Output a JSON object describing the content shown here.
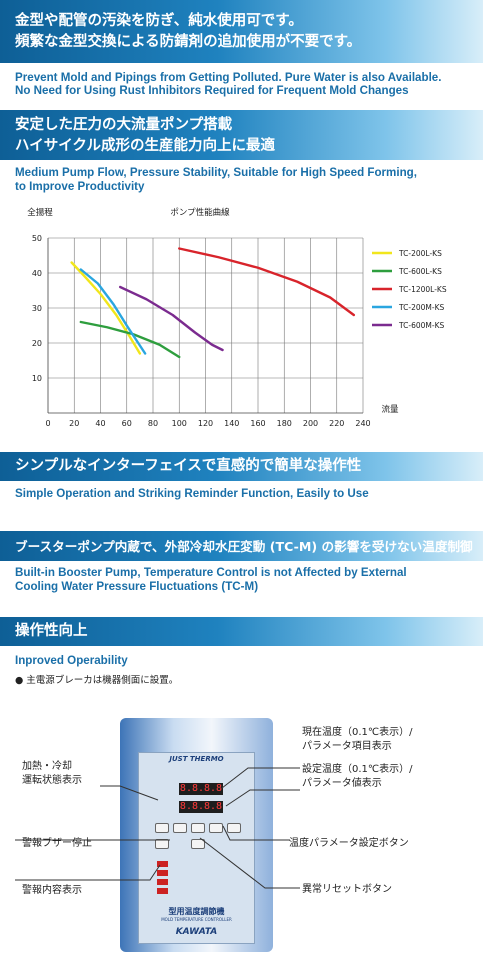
{
  "section1": {
    "jp_line1": "金型や配管の汚染を防ぎ、純水使用可です。",
    "jp_line2": "頻繁な金型交換による防錆剤の追加使用が不要です。",
    "en_line1": "Prevent Mold and Pipings from Getting Polluted. Pure Water is also Available.",
    "en_line2": "No Need for Using Rust Inhibitors Required for Frequent Mold Changes"
  },
  "section2": {
    "jp_line1": "安定した圧力の大流量ポンプ搭載",
    "jp_line2": "ハイサイクル成形の生産能力向上に最適",
    "en_line1": "Medium Pump Flow, Pressure Stability, Suitable for High Speed Forming,",
    "en_line2": "to Improve Productivity"
  },
  "chart_data": {
    "type": "line",
    "ylabel": "全揚程",
    "title": "ポンプ性能曲線",
    "xlabel": "流量",
    "xlim": [
      0,
      240
    ],
    "ylim": [
      0,
      50
    ],
    "xticks": [
      "0",
      "20",
      "40",
      "60",
      "80",
      "100",
      "120",
      "140",
      "160",
      "180",
      "200",
      "220",
      "240"
    ],
    "yticks": [
      "10",
      "20",
      "30",
      "40",
      "50"
    ],
    "series": [
      {
        "name": "TC-200L-KS",
        "color": "#f1e61c",
        "points": [
          [
            18,
            43
          ],
          [
            28,
            39
          ],
          [
            40,
            34
          ],
          [
            52,
            28
          ],
          [
            62,
            22
          ],
          [
            70,
            17
          ]
        ]
      },
      {
        "name": "TC-600L-KS",
        "color": "#2e9e3e",
        "points": [
          [
            25,
            26
          ],
          [
            45,
            24.5
          ],
          [
            65,
            22.5
          ],
          [
            85,
            19.5
          ],
          [
            100,
            16
          ]
        ]
      },
      {
        "name": "TC-1200L-KS",
        "color": "#d8242b",
        "points": [
          [
            100,
            47
          ],
          [
            130,
            44.5
          ],
          [
            160,
            41.5
          ],
          [
            190,
            37.5
          ],
          [
            215,
            33
          ],
          [
            233,
            28
          ]
        ]
      },
      {
        "name": "TC-200M-KS",
        "color": "#2aa6e0",
        "points": [
          [
            25,
            41
          ],
          [
            38,
            37
          ],
          [
            50,
            31
          ],
          [
            60,
            25
          ],
          [
            67,
            21
          ],
          [
            74,
            17
          ]
        ]
      },
      {
        "name": "TC-600M-KS",
        "color": "#7b2b8f",
        "points": [
          [
            55,
            36
          ],
          [
            75,
            32.5
          ],
          [
            95,
            28
          ],
          [
            112,
            23
          ],
          [
            125,
            19.5
          ],
          [
            133,
            18
          ]
        ]
      }
    ]
  },
  "section3": {
    "jp": "シンプルなインターフェイスで直感的で簡単な操作性",
    "en": "Simple Operation and Striking Reminder Function, Easily to Use"
  },
  "section4": {
    "jp": "ブースターポンプ内蔵で、外部冷却水圧変動 (TC-M) の影響を受けない温度制御",
    "en_line1": "Built-in Booster Pump, Temperature Control is not Affected by External",
    "en_line2": "Cooling Water Pressure Fluctuations (TC-M)"
  },
  "section5": {
    "jp": "操作性向上",
    "en": "Inproved Operability",
    "note": "● 主電源ブレーカは機器側面に設置。"
  },
  "panel": {
    "brand": "JUST THERMO",
    "display1": "8.8.8.8",
    "display2": "8.8.8.8",
    "title": "型用温度調節機",
    "subtitle": "MOLD TEMPERATURE CONTROLLER",
    "maker": "KAWATA"
  },
  "callouts": {
    "left1_a": "加熱・冷却",
    "left1_b": "運転状態表示",
    "left2": "警報ブザー停止",
    "left3": "警報内容表示",
    "right1_a": "現在温度（0.1℃表示）/",
    "right1_b": "パラメータ項目表示",
    "right2_a": "設定温度（0.1℃表示）/",
    "right2_b": "パラメータ値表示",
    "right3": "温度パラメータ設定ボタン",
    "right4": "異常リセットボタン"
  },
  "colors": {
    "band": "#1a73b3",
    "en_text": "#1a6fa8"
  }
}
